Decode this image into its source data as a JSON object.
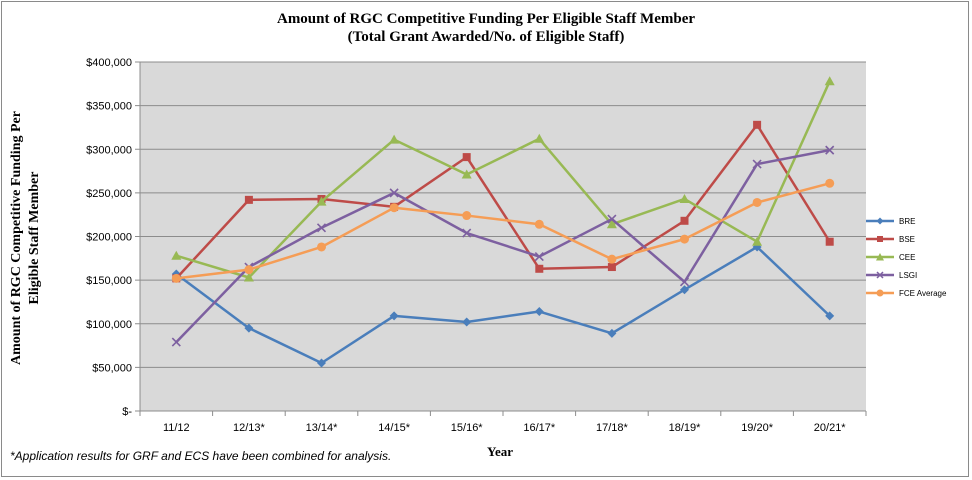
{
  "chart_data": {
    "type": "line",
    "title": "Amount of RGC Competitive Funding Per Eligible Staff Member",
    "subtitle": "(Total Grant Awarded/No. of Eligible Staff)",
    "xlabel": "Year",
    "ylabel": "Amount of RGC Competitive Funding Per Eligible Staff Member",
    "ylim": [
      0,
      400000
    ],
    "ytick_values": [
      0,
      50000,
      100000,
      150000,
      200000,
      250000,
      300000,
      350000,
      400000
    ],
    "ytick_labels": [
      "$-",
      "$50,000",
      "$100,000",
      "$150,000",
      "$200,000",
      "$250,000",
      "$300,000",
      "$350,000",
      "$400,000"
    ],
    "grid": true,
    "legend_position": "right",
    "categories": [
      "11/12",
      "12/13*",
      "13/14*",
      "14/15*",
      "15/16*",
      "16/17*",
      "17/18*",
      "18/19*",
      "19/20*",
      "20/21*"
    ],
    "series": [
      {
        "name": "BRE",
        "color": "#4a7ebb",
        "marker": "diamond",
        "values": [
          157000,
          95000,
          55000,
          109000,
          102000,
          114000,
          89000,
          139000,
          188000,
          109000
        ]
      },
      {
        "name": "BSE",
        "color": "#be4b48",
        "marker": "square",
        "values": [
          152000,
          242000,
          243000,
          234000,
          291000,
          163000,
          165000,
          218000,
          328000,
          194000
        ]
      },
      {
        "name": "CEE",
        "color": "#98b954",
        "marker": "triangle",
        "values": [
          178000,
          153000,
          240000,
          311000,
          271000,
          312000,
          214000,
          243000,
          194000,
          378000
        ]
      },
      {
        "name": "LSGI",
        "color": "#7d60a0",
        "marker": "x",
        "values": [
          79000,
          165000,
          210000,
          250000,
          204000,
          177000,
          220000,
          148000,
          283000,
          299000
        ]
      },
      {
        "name": "FCE Average",
        "color": "#f59d56",
        "marker": "circle",
        "values": [
          152000,
          162000,
          188000,
          233000,
          224000,
          214000,
          174000,
          197000,
          239000,
          261000
        ]
      }
    ]
  },
  "footnote": "*Application results for GRF and ECS have been combined for analysis."
}
